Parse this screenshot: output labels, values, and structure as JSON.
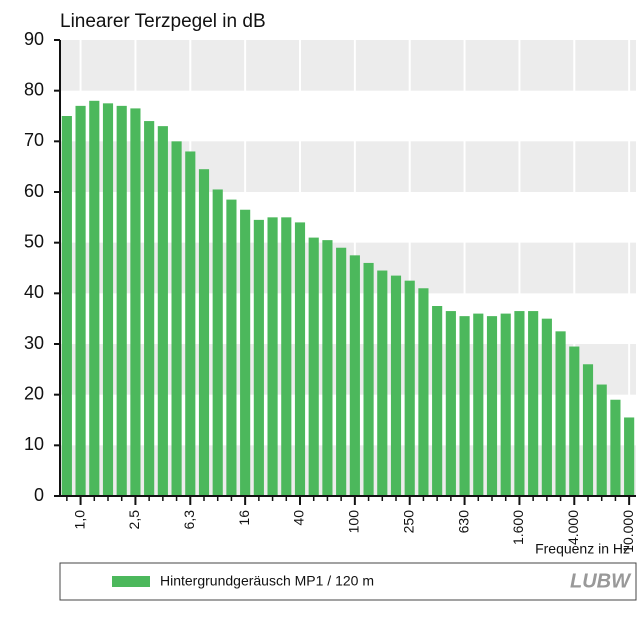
{
  "chart_data": {
    "type": "bar",
    "title": "Linearer Terzpegel in dB",
    "x_label": "Frequenz in Hz",
    "logo": "LUBW",
    "categories": [
      null,
      "1,0",
      null,
      null,
      null,
      "2,5",
      null,
      null,
      null,
      "6,3",
      null,
      null,
      null,
      "16",
      null,
      null,
      null,
      "40",
      null,
      null,
      null,
      "100",
      null,
      null,
      null,
      "250",
      null,
      null,
      null,
      "630",
      null,
      null,
      null,
      "1.600",
      null,
      null,
      null,
      "4.000",
      null,
      null,
      null,
      "10.000"
    ],
    "series": [
      {
        "name": "Hintergrundgeräusch MP1 / 120 m",
        "color": "#4cb85c",
        "values": [
          75,
          77,
          78,
          77.5,
          77,
          76.5,
          74,
          73,
          70,
          68,
          64.5,
          60.5,
          58.5,
          56.5,
          54.5,
          55,
          55,
          54,
          51,
          50.5,
          49,
          47.5,
          46,
          44.5,
          43.5,
          42.5,
          41,
          37.5,
          36.5,
          35.5,
          36,
          35.5,
          36,
          36.5,
          36.5,
          35,
          32.5,
          29.5,
          26,
          22,
          19,
          15.5
        ]
      }
    ],
    "ylim": [
      0,
      90
    ],
    "yticks": [
      0,
      10,
      20,
      30,
      40,
      50,
      60,
      70,
      80,
      90
    ],
    "grid": true
  }
}
